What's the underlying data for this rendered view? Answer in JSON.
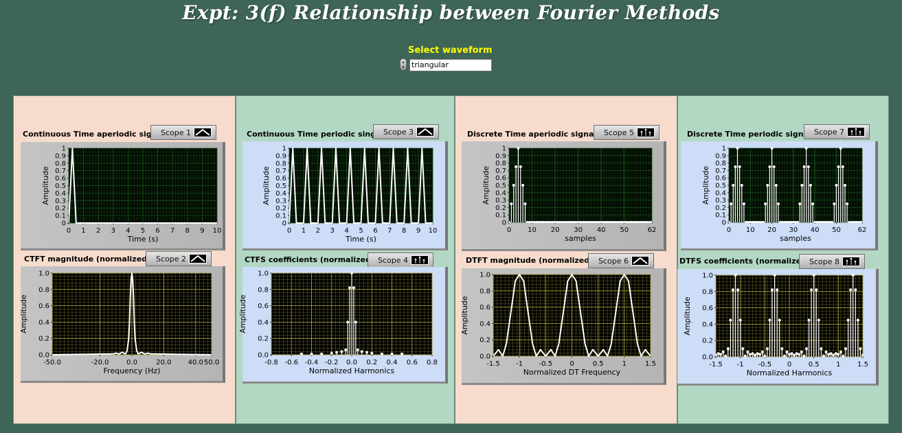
{
  "title": "Expt: 3(f) Relationship between Fourier Methods",
  "selector": {
    "label": "Select waveform",
    "value": "triangular"
  },
  "colors": {
    "background": "#3e6556",
    "panel_peach": "#f7dccd",
    "panel_mint": "#b2d8c3",
    "plot_bg": "#000000",
    "grid_dark": "#1e5a1e",
    "grid_bright": "#b6a93a",
    "trace": "#ffffff",
    "label_yellow": "#ffff00"
  },
  "graphs": [
    {
      "id": "g1",
      "label": "Continuous Time aperiodic signal",
      "scope": "Scope 1",
      "scope_icon": "line-icon",
      "xlabel": "Time (s)",
      "ylabel": "Amplitude",
      "xticks": [
        "0",
        "1",
        "2",
        "3",
        "4",
        "5",
        "6",
        "7",
        "8",
        "9",
        "10"
      ],
      "yticks": [
        "0",
        "0.1",
        "0.2",
        "0.3",
        "0.4",
        "0.5",
        "0.6",
        "0.7",
        "0.8",
        "0.9",
        "1"
      ]
    },
    {
      "id": "g2",
      "label": "CTFT magnitude (normalized)",
      "scope": "Scope 2",
      "scope_icon": "line-icon",
      "xlabel": "Frequency (Hz)",
      "ylabel": "Amplitude",
      "xticks": [
        "-50.0",
        "-20.0",
        "0.0",
        "20.0",
        "40.0",
        "50.0"
      ],
      "yticks": [
        "0.0",
        "0.2",
        "0.4",
        "0.6",
        "0.8",
        "1.0"
      ]
    },
    {
      "id": "g3",
      "label": "Continuous Time periodic singal",
      "scope": "Scope 3",
      "scope_icon": "line-icon",
      "xlabel": "Time (s)",
      "ylabel": "Amplitude",
      "xticks": [
        "0",
        "1",
        "2",
        "3",
        "4",
        "5",
        "6",
        "7",
        "8",
        "9",
        "10"
      ],
      "yticks": [
        "0",
        "0.1",
        "0.2",
        "0.3",
        "0.4",
        "0.5",
        "0.6",
        "0.7",
        "0.8",
        "0.9",
        "1"
      ]
    },
    {
      "id": "g4",
      "label": "CTFS coefficients (normalized)",
      "scope": "Scope 4",
      "scope_icon": "stem-icon",
      "xlabel": "Normalized Harmonics",
      "ylabel": "Amplitude",
      "xticks": [
        "-0.8",
        "-0.6",
        "-0.4",
        "-0.2",
        "0.0",
        "0.2",
        "0.4",
        "0.6",
        "0.8"
      ],
      "yticks": [
        "0.0",
        "0.2",
        "0.4",
        "0.6",
        "0.8",
        "1.0"
      ]
    },
    {
      "id": "g5",
      "label": "Discrete Time aperiodic signal",
      "scope": "Scope 5",
      "scope_icon": "stem-icon",
      "xlabel": "samples",
      "ylabel": "Amplitude",
      "xticks": [
        "0",
        "10",
        "20",
        "30",
        "40",
        "50",
        "62"
      ],
      "yticks": [
        "0",
        "0.1",
        "0.2",
        "0.3",
        "0.4",
        "0.5",
        "0.6",
        "0.7",
        "0.8",
        "0.9",
        "1"
      ]
    },
    {
      "id": "g6",
      "label": "DTFT magnitude (normalized)",
      "scope": "Scope 6",
      "scope_icon": "line-icon",
      "xlabel": "Normalized DT Frequency",
      "ylabel": "Amplitude",
      "xticks": [
        "-1.5",
        "-1",
        "-0.5",
        "0",
        "0.5",
        "1",
        "1.5"
      ],
      "yticks": [
        "0.0",
        "0.2",
        "0.4",
        "0.6",
        "0.8",
        "1.0"
      ]
    },
    {
      "id": "g7",
      "label": "Discrete Time periodic signal",
      "scope": "Scope 7",
      "scope_icon": "stem-icon",
      "xlabel": "samples",
      "ylabel": "Amplitude",
      "xticks": [
        "0",
        "10",
        "20",
        "30",
        "40",
        "50",
        "62"
      ],
      "yticks": [
        "0",
        "0.1",
        "0.2",
        "0.3",
        "0.4",
        "0.5",
        "0.6",
        "0.7",
        "0.8",
        "0.9",
        "1"
      ]
    },
    {
      "id": "g8",
      "label": "DTFS coefficients (normalized)",
      "scope": "Scope 8",
      "scope_icon": "stem-icon",
      "xlabel": "Normalized Harmonics",
      "ylabel": "Amplitude",
      "xticks": [
        "-1.5",
        "-1",
        "-0.5",
        "0",
        "0.5",
        "1",
        "1.5"
      ],
      "yticks": [
        "0.0",
        "0.2",
        "0.4",
        "0.6",
        "0.8",
        "1.0"
      ]
    }
  ],
  "chart_data": [
    {
      "id": "g1",
      "type": "line",
      "xlim": [
        0,
        10
      ],
      "ylim": [
        0,
        1
      ],
      "grid": true,
      "x": [
        0,
        0.25,
        0.5,
        10
      ],
      "y": [
        0,
        1,
        0,
        0
      ]
    },
    {
      "id": "g2",
      "type": "line",
      "xlim": [
        -50,
        50
      ],
      "ylim": [
        0,
        1
      ],
      "grid": true,
      "x": [
        -50,
        -12,
        -10,
        -8,
        -6,
        -4,
        -3,
        -2,
        -1.5,
        -1,
        -0.5,
        0,
        0.5,
        1,
        1.5,
        2,
        3,
        4,
        6,
        8,
        10,
        12,
        50
      ],
      "y": [
        0,
        0.01,
        0.02,
        0.01,
        0.03,
        0.01,
        0.05,
        0.2,
        0.4,
        0.72,
        0.93,
        1.0,
        0.93,
        0.72,
        0.4,
        0.2,
        0.05,
        0.01,
        0.03,
        0.01,
        0.02,
        0.01,
        0
      ]
    },
    {
      "id": "g3",
      "type": "line",
      "xlim": [
        0,
        10
      ],
      "ylim": [
        0,
        1
      ],
      "grid": true,
      "x": [
        0,
        0.25,
        0.5,
        1.0,
        1.25,
        1.5,
        2.0,
        2.25,
        2.5,
        3.0,
        3.25,
        3.5,
        4.0,
        4.25,
        4.5,
        5.0,
        5.25,
        5.5,
        6.0,
        6.25,
        6.5,
        7.0,
        7.25,
        7.5,
        8.0,
        8.25,
        8.5,
        9.0,
        9.25,
        9.5,
        10
      ],
      "y": [
        0,
        1,
        0,
        0,
        1,
        0,
        0,
        1,
        0,
        0,
        1,
        0,
        0,
        1,
        0,
        0,
        1,
        0,
        0,
        1,
        0,
        0,
        1,
        0,
        0,
        1,
        0,
        0,
        1,
        0,
        0
      ]
    },
    {
      "id": "g4",
      "type": "scatter",
      "stem": true,
      "xlim": [
        -0.8,
        0.8
      ],
      "ylim": [
        0,
        1
      ],
      "grid": true,
      "x": [
        -0.5,
        -0.4,
        -0.3,
        -0.2,
        -0.15,
        -0.1,
        -0.06,
        -0.04,
        -0.02,
        0.0,
        0.02,
        0.04,
        0.06,
        0.1,
        0.15,
        0.2,
        0.3,
        0.4,
        0.5
      ],
      "y": [
        0.01,
        0.01,
        0.01,
        0.02,
        0.03,
        0.04,
        0.06,
        0.4,
        0.82,
        1.0,
        0.82,
        0.4,
        0.06,
        0.04,
        0.03,
        0.02,
        0.01,
        0.01,
        0.01
      ]
    },
    {
      "id": "g5",
      "type": "scatter",
      "stem": true,
      "xlim": [
        0,
        62
      ],
      "ylim": [
        0,
        1
      ],
      "grid": true,
      "x": [
        0,
        1,
        2,
        3,
        4,
        5,
        6,
        7,
        8,
        9,
        10,
        11,
        12,
        13,
        14,
        15,
        16,
        17,
        18,
        19,
        20,
        21,
        22,
        23,
        24,
        25,
        26,
        27,
        28,
        29,
        30,
        31,
        32,
        33,
        34,
        35,
        36,
        37,
        38,
        39,
        40,
        41,
        42,
        43,
        44,
        45,
        46,
        47,
        48,
        49,
        50,
        51,
        52,
        53,
        54,
        55,
        56,
        57,
        58,
        59,
        60,
        61,
        62
      ],
      "y": [
        0,
        0.25,
        0.5,
        0.75,
        1,
        0.75,
        0.5,
        0.25,
        0,
        0,
        0,
        0,
        0,
        0,
        0,
        0,
        0,
        0,
        0,
        0,
        0,
        0,
        0,
        0,
        0,
        0,
        0,
        0,
        0,
        0,
        0,
        0,
        0,
        0,
        0,
        0,
        0,
        0,
        0,
        0,
        0,
        0,
        0,
        0,
        0,
        0,
        0,
        0,
        0,
        0,
        0,
        0,
        0,
        0,
        0,
        0,
        0,
        0,
        0,
        0,
        0,
        0,
        0
      ]
    },
    {
      "id": "g6",
      "type": "line",
      "xlim": [
        -1.5,
        1.5
      ],
      "ylim": [
        0,
        1
      ],
      "grid": true,
      "x": [
        -1.5,
        -1.4,
        -1.32,
        -1.25,
        -1.15,
        -1.08,
        -1.0,
        -0.92,
        -0.85,
        -0.75,
        -0.68,
        -0.6,
        -0.5,
        -0.4,
        -0.32,
        -0.25,
        -0.15,
        -0.08,
        0.0,
        0.08,
        0.15,
        0.25,
        0.32,
        0.4,
        0.5,
        0.6,
        0.68,
        0.75,
        0.85,
        0.92,
        1.0,
        1.08,
        1.15,
        1.25,
        1.32,
        1.4,
        1.5
      ],
      "y": [
        0,
        0.08,
        0.0,
        0.15,
        0.6,
        0.92,
        1.0,
        0.92,
        0.6,
        0.15,
        0.0,
        0.08,
        0.0,
        0.08,
        0.0,
        0.15,
        0.6,
        0.92,
        1.0,
        0.92,
        0.6,
        0.15,
        0.0,
        0.08,
        0.0,
        0.08,
        0.0,
        0.15,
        0.6,
        0.92,
        1.0,
        0.92,
        0.6,
        0.15,
        0.0,
        0.08,
        0
      ]
    },
    {
      "id": "g7",
      "type": "scatter",
      "stem": true,
      "xlim": [
        0,
        62
      ],
      "ylim": [
        0,
        1
      ],
      "grid": true,
      "x": [
        0,
        1,
        2,
        3,
        4,
        5,
        6,
        7,
        8,
        9,
        10,
        11,
        12,
        13,
        14,
        15,
        16,
        17,
        18,
        19,
        20,
        21,
        22,
        23,
        24,
        25,
        26,
        27,
        28,
        29,
        30,
        31,
        32,
        33,
        34,
        35,
        36,
        37,
        38,
        39,
        40,
        41,
        42,
        43,
        44,
        45,
        46,
        47,
        48,
        49,
        50,
        51,
        52,
        53,
        54,
        55,
        56,
        57,
        58,
        59,
        60,
        61,
        62
      ],
      "y": [
        0,
        0.25,
        0.5,
        0.75,
        1,
        0.75,
        0.5,
        0.25,
        0,
        0,
        0,
        0,
        0,
        0,
        0,
        0,
        0,
        0.25,
        0.5,
        0.75,
        1,
        0.75,
        0.5,
        0.25,
        0,
        0,
        0,
        0,
        0,
        0,
        0,
        0,
        0,
        0.25,
        0.5,
        0.75,
        1,
        0.75,
        0.5,
        0.25,
        0,
        0,
        0,
        0,
        0,
        0,
        0,
        0,
        0,
        0.25,
        0.5,
        0.75,
        1,
        0.75,
        0.5,
        0.25,
        0,
        0,
        0,
        0,
        0,
        0,
        0
      ]
    },
    {
      "id": "g8",
      "type": "scatter",
      "stem": true,
      "xlim": [
        -1.5,
        1.5
      ],
      "ylim": [
        0,
        1
      ],
      "grid": true,
      "x": [
        -1.5,
        -1.45,
        -1.4,
        -1.35,
        -1.3,
        -1.25,
        -1.2,
        -1.15,
        -1.1,
        -1.05,
        -1.0,
        -0.95,
        -0.9,
        -0.85,
        -0.8,
        -0.75,
        -0.7,
        -0.65,
        -0.6,
        -0.55,
        -0.5,
        -0.45,
        -0.4,
        -0.35,
        -0.3,
        -0.25,
        -0.2,
        -0.15,
        -0.1,
        -0.05,
        0.0,
        0.05,
        0.1,
        0.15,
        0.2,
        0.25,
        0.3,
        0.35,
        0.4,
        0.45,
        0.5,
        0.55,
        0.6,
        0.65,
        0.7,
        0.75,
        0.8,
        0.85,
        0.9,
        0.95,
        1.0,
        1.05,
        1.1,
        1.15,
        1.2,
        1.25,
        1.3,
        1.35,
        1.4,
        1.45,
        1.5
      ],
      "y": [
        0.02,
        0.04,
        0.03,
        0.06,
        0.01,
        0.1,
        0.45,
        0.82,
        1.0,
        0.82,
        0.45,
        0.1,
        0.01,
        0.06,
        0.03,
        0.04,
        0.02,
        0.04,
        0.03,
        0.06,
        0.01,
        0.1,
        0.45,
        0.82,
        1.0,
        0.82,
        0.45,
        0.1,
        0.01,
        0.06,
        0.03,
        0.04,
        0.02,
        0.04,
        0.03,
        0.06,
        0.01,
        0.1,
        0.45,
        0.82,
        1.0,
        0.82,
        0.45,
        0.1,
        0.01,
        0.06,
        0.03,
        0.04,
        0.02,
        0.04,
        0.03,
        0.06,
        0.01,
        0.1,
        0.45,
        0.82,
        1.0,
        0.82,
        0.45,
        0.1,
        0.02
      ]
    }
  ]
}
